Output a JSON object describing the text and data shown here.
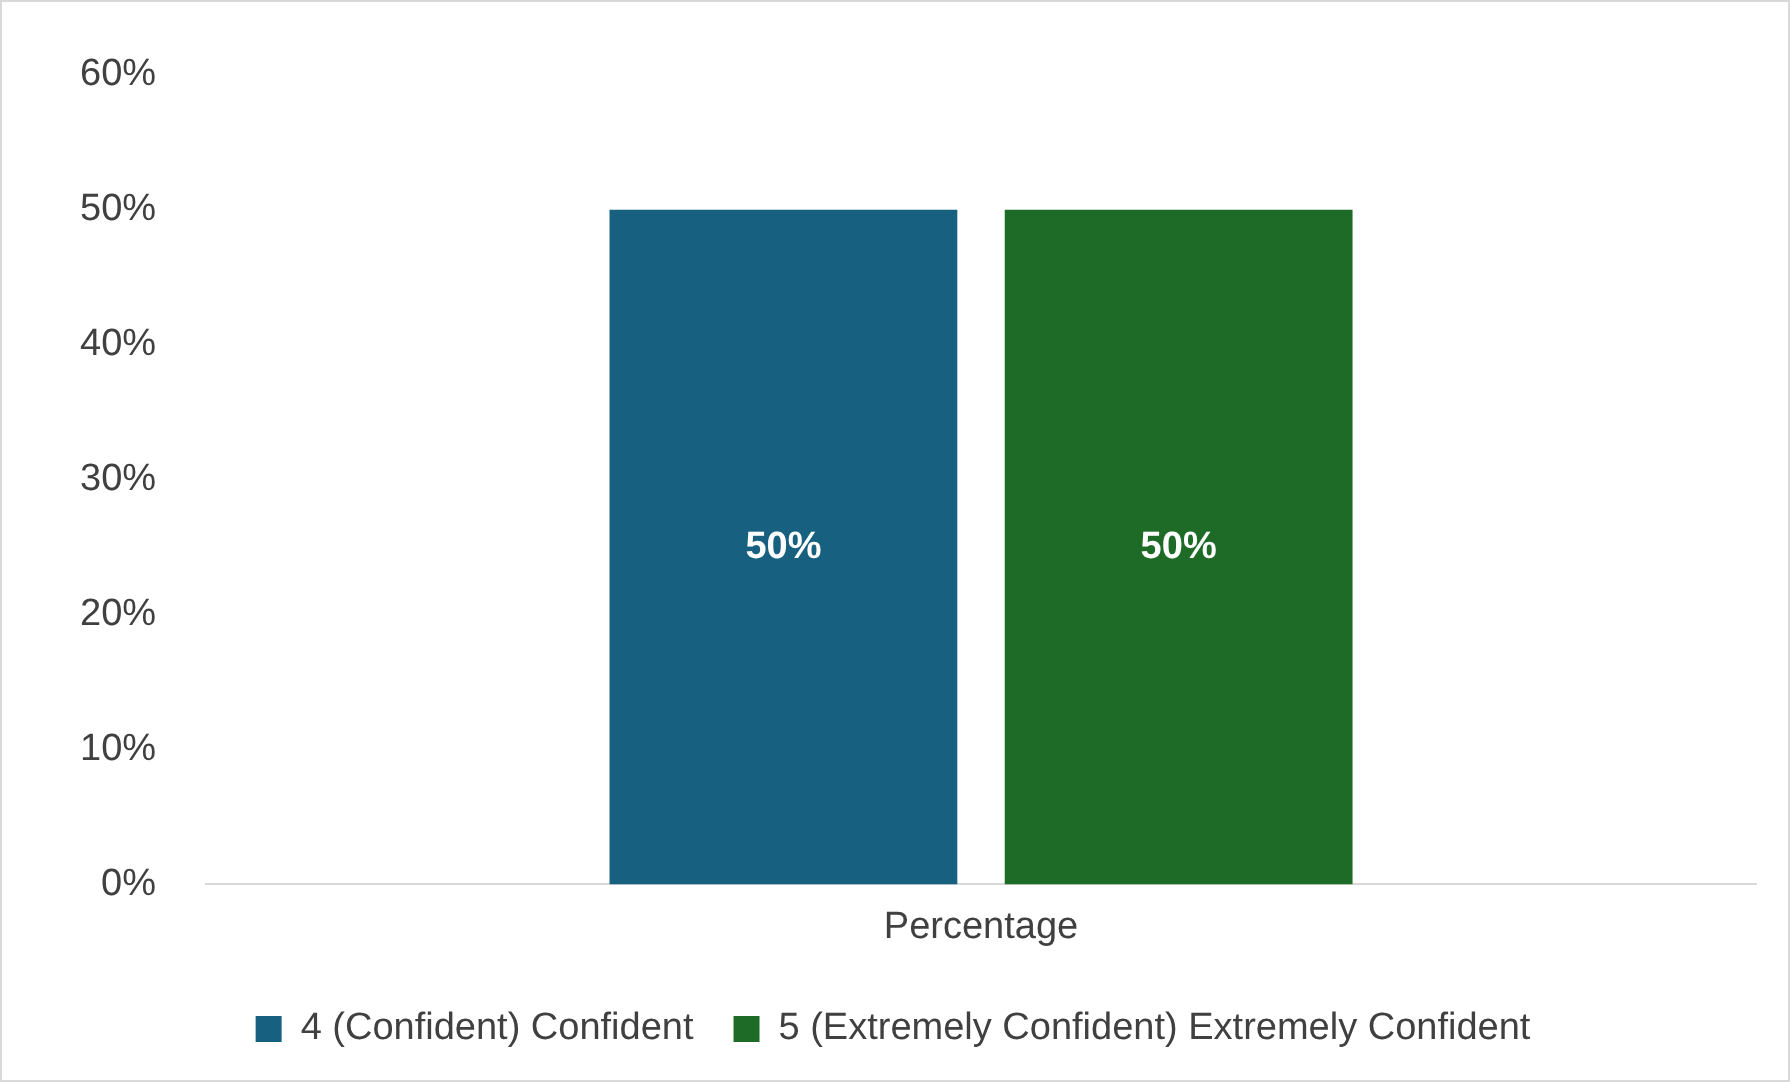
{
  "chart_data": {
    "type": "bar",
    "categories": [
      "Percentage"
    ],
    "series": [
      {
        "name": "4 (Confident) Confident",
        "color": "#17607f",
        "values": [
          50
        ]
      },
      {
        "name": "5 (Extremely Confident) Extremely Confident",
        "color": "#1e6b28",
        "values": [
          50
        ]
      }
    ],
    "ylim": [
      0,
      60
    ],
    "yticks": [
      {
        "value": 0,
        "label": "0%"
      },
      {
        "value": 10,
        "label": "10%"
      },
      {
        "value": 20,
        "label": "20%"
      },
      {
        "value": 30,
        "label": "30%"
      },
      {
        "value": 40,
        "label": "40%"
      },
      {
        "value": 50,
        "label": "50%"
      },
      {
        "value": 60,
        "label": "60%"
      }
    ],
    "value_labels": [
      "50%"
    ],
    "grid": false,
    "legend": "bottom"
  }
}
